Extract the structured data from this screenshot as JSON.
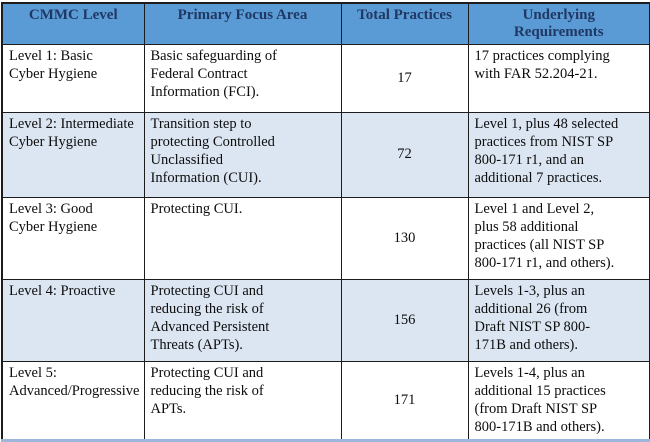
{
  "colors": {
    "header_bg": "#5b9bd5",
    "header_text": "#1f3864",
    "row_bg": "#ffffff",
    "row_alt_bg": "#dce6f2",
    "grid_border": "#1c1c1c",
    "bottom_border": "#9eb6db",
    "body_text": "#0d0d0d"
  },
  "table": {
    "headers": [
      "CMMC Level",
      "Primary Focus Area",
      "Total Practices",
      "Underlying\nRequirements"
    ],
    "rows": [
      {
        "level": "Level 1: Basic\nCyber Hygiene",
        "focus": "Basic safeguarding of\nFederal Contract\nInformation (FCI).",
        "practices": "17",
        "requirements": "17 practices complying\nwith FAR 52.204-21."
      },
      {
        "level": "Level 2: Intermediate\nCyber Hygiene",
        "focus": "Transition step to\nprotecting Controlled\nUnclassified\nInformation (CUI).",
        "practices": "72",
        "requirements": "Level 1, plus 48 selected\npractices from NIST SP\n800-171 r1, and an\nadditional 7 practices."
      },
      {
        "level": "Level 3: Good\nCyber Hygiene",
        "focus": "Protecting CUI.",
        "practices": "130",
        "requirements": "Level 1 and Level 2,\nplus 58 additional\npractices (all NIST SP\n800-171 r1, and others)."
      },
      {
        "level": "Level 4: Proactive",
        "focus": "Protecting CUI and\nreducing the risk of\nAdvanced Persistent\nThreats (APTs).",
        "practices": "156",
        "requirements": "Levels 1-3, plus an\nadditional 26 (from\nDraft NIST SP 800-\n171B and others)."
      },
      {
        "level": "Level 5:\nAdvanced/Progressive",
        "focus": "Protecting CUI and\nreducing the risk of\nAPTs.",
        "practices": "171",
        "requirements": "Levels 1-4, plus an\nadditional 15 practices\n(from Draft NIST SP\n800-171B and others)."
      }
    ]
  }
}
